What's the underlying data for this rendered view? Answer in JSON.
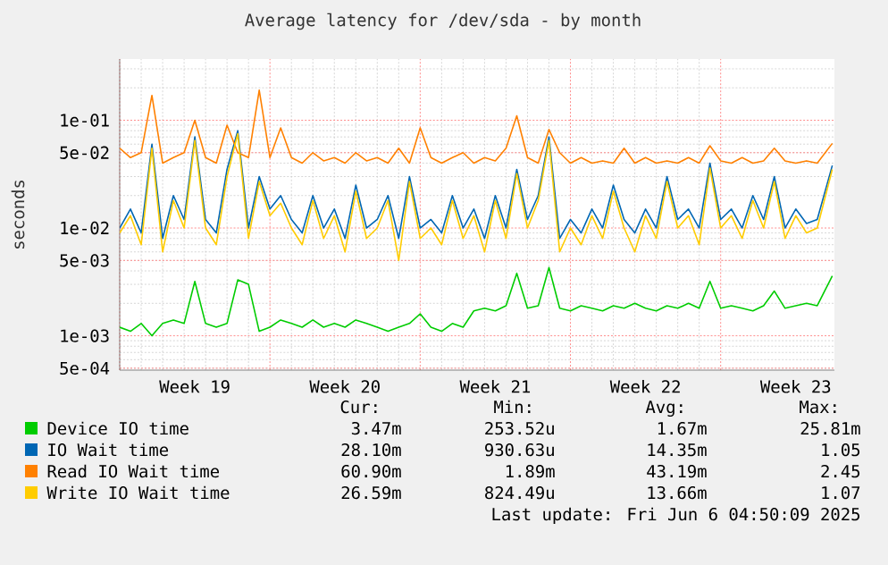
{
  "chart_data": {
    "type": "line",
    "title": "Average latency for /dev/sda - by month",
    "ylabel": "seconds",
    "log": "y",
    "grid": true,
    "legend": "bottom",
    "marker": "none",
    "line_style": "solid",
    "xlim": [
      "2025-05-04",
      "2025-06-06T07:12"
    ],
    "ylim": [
      0.00048,
      0.37
    ],
    "xticks": [
      {
        "value": "2025-05-04",
        "label": null
      },
      {
        "value": "2025-05-07T12:00",
        "label": "Week 19"
      },
      {
        "value": "2025-05-11",
        "label": null
      },
      {
        "value": "2025-05-14T12:00",
        "label": "Week 20"
      },
      {
        "value": "2025-05-18",
        "label": null
      },
      {
        "value": "2025-05-21T12:00",
        "label": "Week 21"
      },
      {
        "value": "2025-05-25",
        "label": null
      },
      {
        "value": "2025-05-28T12:00",
        "label": "Week 22"
      },
      {
        "value": "2025-06-01",
        "label": null
      },
      {
        "value": "2025-06-04T12:00",
        "label": "Week 23"
      }
    ],
    "yticks": [
      {
        "value": 0.0005,
        "label": "5e-04"
      },
      {
        "value": 0.001,
        "label": "1e-03"
      },
      {
        "value": 0.005,
        "label": "5e-03"
      },
      {
        "value": 0.01,
        "label": "1e-02"
      },
      {
        "value": 0.05,
        "label": "5e-02"
      },
      {
        "value": 0.1,
        "label": "1e-01"
      }
    ],
    "x": [
      "2025-05-04T00:00",
      "2025-05-04T12:00",
      "2025-05-05T00:00",
      "2025-05-05T12:00",
      "2025-05-06T00:00",
      "2025-05-06T12:00",
      "2025-05-07T00:00",
      "2025-05-07T12:00",
      "2025-05-08T00:00",
      "2025-05-08T12:00",
      "2025-05-09T00:00",
      "2025-05-09T12:00",
      "2025-05-10T00:00",
      "2025-05-10T12:00",
      "2025-05-11T00:00",
      "2025-05-11T12:00",
      "2025-05-12T00:00",
      "2025-05-12T12:00",
      "2025-05-13T00:00",
      "2025-05-13T12:00",
      "2025-05-14T00:00",
      "2025-05-14T12:00",
      "2025-05-15T00:00",
      "2025-05-15T12:00",
      "2025-05-16T00:00",
      "2025-05-16T12:00",
      "2025-05-17T00:00",
      "2025-05-17T12:00",
      "2025-05-18T00:00",
      "2025-05-18T12:00",
      "2025-05-19T00:00",
      "2025-05-19T12:00",
      "2025-05-20T00:00",
      "2025-05-20T12:00",
      "2025-05-21T00:00",
      "2025-05-21T12:00",
      "2025-05-22T00:00",
      "2025-05-22T12:00",
      "2025-05-23T00:00",
      "2025-05-23T12:00",
      "2025-05-24T00:00",
      "2025-05-24T12:00",
      "2025-05-25T00:00",
      "2025-05-25T12:00",
      "2025-05-26T00:00",
      "2025-05-26T12:00",
      "2025-05-27T00:00",
      "2025-05-27T12:00",
      "2025-05-28T00:00",
      "2025-05-28T12:00",
      "2025-05-29T00:00",
      "2025-05-29T12:00",
      "2025-05-30T00:00",
      "2025-05-30T12:00",
      "2025-05-31T00:00",
      "2025-05-31T12:00",
      "2025-06-01T00:00",
      "2025-06-01T12:00",
      "2025-06-02T00:00",
      "2025-06-02T12:00",
      "2025-06-03T00:00",
      "2025-06-03T12:00",
      "2025-06-04T00:00",
      "2025-06-04T12:00",
      "2025-06-05T00:00",
      "2025-06-05T12:00",
      "2025-06-06T04:50"
    ],
    "series": [
      {
        "name": "Device IO time",
        "color": "#00cc00",
        "values": [
          0.0012,
          0.0011,
          0.0013,
          0.001,
          0.0013,
          0.0014,
          0.0013,
          0.0032,
          0.0013,
          0.0012,
          0.0013,
          0.0033,
          0.003,
          0.0011,
          0.0012,
          0.0014,
          0.0013,
          0.0012,
          0.0014,
          0.0012,
          0.0013,
          0.0012,
          0.0014,
          0.0013,
          0.0012,
          0.0011,
          0.0012,
          0.0013,
          0.0016,
          0.0012,
          0.0011,
          0.0013,
          0.0012,
          0.0017,
          0.0018,
          0.0017,
          0.0019,
          0.0038,
          0.0018,
          0.0019,
          0.0043,
          0.0018,
          0.0017,
          0.0019,
          0.0018,
          0.0017,
          0.0019,
          0.0018,
          0.002,
          0.0018,
          0.0017,
          0.0019,
          0.0018,
          0.002,
          0.0018,
          0.0032,
          0.0018,
          0.0019,
          0.0018,
          0.0017,
          0.0019,
          0.0026,
          0.0018,
          0.0019,
          0.002,
          0.0019,
          0.0036
        ]
      },
      {
        "name": "IO Wait time",
        "color": "#0066b3",
        "values": [
          0.01,
          0.015,
          0.009,
          0.06,
          0.008,
          0.02,
          0.012,
          0.07,
          0.012,
          0.009,
          0.035,
          0.08,
          0.01,
          0.03,
          0.015,
          0.02,
          0.012,
          0.009,
          0.02,
          0.01,
          0.015,
          0.008,
          0.025,
          0.01,
          0.012,
          0.02,
          0.008,
          0.03,
          0.01,
          0.012,
          0.009,
          0.02,
          0.01,
          0.015,
          0.008,
          0.02,
          0.01,
          0.035,
          0.012,
          0.02,
          0.07,
          0.008,
          0.012,
          0.009,
          0.015,
          0.01,
          0.025,
          0.012,
          0.009,
          0.015,
          0.01,
          0.03,
          0.012,
          0.015,
          0.01,
          0.04,
          0.012,
          0.015,
          0.01,
          0.02,
          0.012,
          0.03,
          0.01,
          0.015,
          0.011,
          0.012,
          0.038
        ]
      },
      {
        "name": "Read IO Wait time",
        "color": "#ff8000",
        "values": [
          0.055,
          0.045,
          0.05,
          0.17,
          0.04,
          0.045,
          0.05,
          0.1,
          0.045,
          0.04,
          0.09,
          0.05,
          0.045,
          0.19,
          0.045,
          0.085,
          0.045,
          0.04,
          0.05,
          0.042,
          0.045,
          0.04,
          0.05,
          0.042,
          0.045,
          0.04,
          0.055,
          0.04,
          0.085,
          0.045,
          0.04,
          0.045,
          0.05,
          0.04,
          0.045,
          0.042,
          0.055,
          0.11,
          0.045,
          0.04,
          0.082,
          0.05,
          0.04,
          0.045,
          0.04,
          0.042,
          0.04,
          0.055,
          0.04,
          0.045,
          0.04,
          0.042,
          0.04,
          0.045,
          0.04,
          0.058,
          0.042,
          0.04,
          0.045,
          0.04,
          0.042,
          0.055,
          0.042,
          0.04,
          0.042,
          0.04,
          0.061
        ]
      },
      {
        "name": "Write IO Wait time",
        "color": "#ffcc00",
        "values": [
          0.009,
          0.013,
          0.007,
          0.055,
          0.006,
          0.018,
          0.01,
          0.065,
          0.01,
          0.007,
          0.03,
          0.075,
          0.008,
          0.027,
          0.013,
          0.017,
          0.01,
          0.007,
          0.018,
          0.008,
          0.013,
          0.006,
          0.022,
          0.008,
          0.01,
          0.018,
          0.005,
          0.027,
          0.008,
          0.01,
          0.007,
          0.018,
          0.008,
          0.013,
          0.006,
          0.018,
          0.008,
          0.032,
          0.01,
          0.018,
          0.065,
          0.006,
          0.01,
          0.007,
          0.013,
          0.008,
          0.022,
          0.01,
          0.006,
          0.013,
          0.008,
          0.027,
          0.01,
          0.013,
          0.007,
          0.036,
          0.01,
          0.013,
          0.008,
          0.018,
          0.01,
          0.027,
          0.008,
          0.013,
          0.009,
          0.01,
          0.035
        ]
      }
    ],
    "annotations": [
      "Cur:",
      "Min:",
      "Avg:",
      "Max:",
      "3.47m",
      "253.52u",
      "1.67m",
      "25.81m",
      "28.10m",
      "930.63u",
      "14.35m",
      "1.05",
      "60.90m",
      "1.89m",
      "43.19m",
      "2.45",
      "26.59m",
      "824.49u",
      "13.66m",
      "1.07",
      "Last update: Fri Jun  6 04:50:09 2025"
    ]
  }
}
